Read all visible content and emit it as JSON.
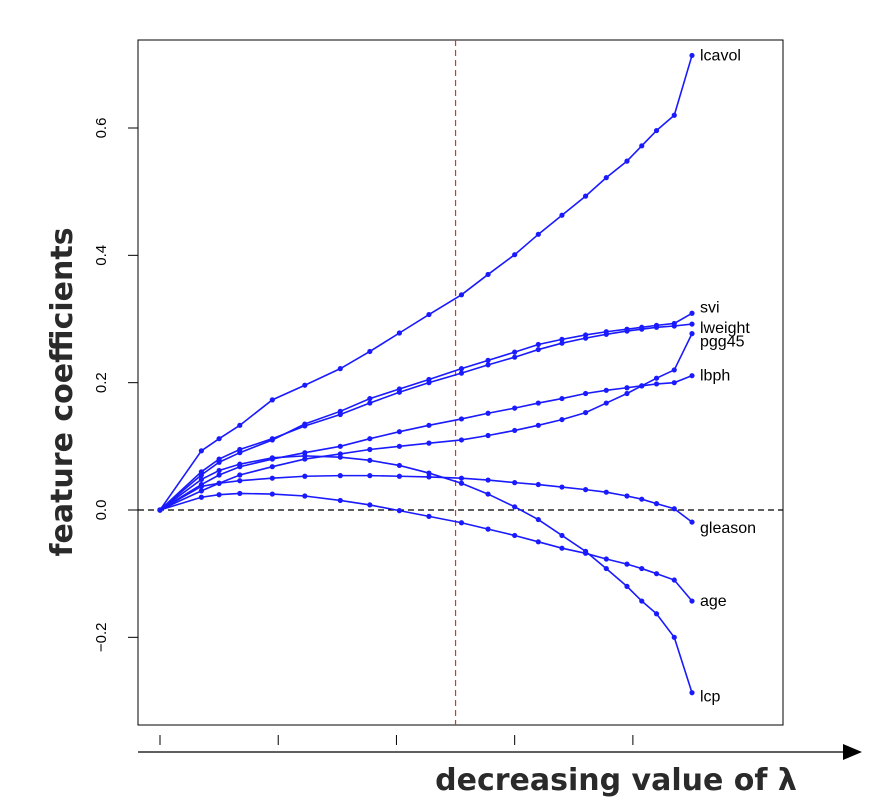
{
  "chart_data": {
    "type": "line",
    "title": "",
    "xlabel": "decreasing value of λ",
    "ylabel": "feature coefficients",
    "x_tick_labels": [
      "",
      "",
      "",
      "",
      ""
    ],
    "y_ticks": [
      -0.2,
      0.0,
      0.2,
      0.4,
      0.6
    ],
    "y_tick_labels": [
      "−0.2",
      "0.0",
      "0.2",
      "0.4",
      "0.6"
    ],
    "x": [
      0,
      0.7,
      1.0,
      1.35,
      1.9,
      2.45,
      3.05,
      3.55,
      4.05,
      4.55,
      5.1,
      5.55,
      6.0,
      6.4,
      6.8,
      7.2,
      7.55,
      7.9,
      8.15,
      8.4,
      8.7,
      9.0
    ],
    "xlim": [
      -0.15,
      10.0
    ],
    "ylim": [
      -0.34,
      0.78
    ],
    "x_axis_ticks": [
      0,
      2,
      4,
      6,
      8
    ],
    "reference_lines": {
      "vertical_x": 5.0,
      "vertical_color": "#e03030",
      "horizontal_y": 0.0,
      "horizontal_color": "#000000"
    },
    "series": [
      {
        "name": "lcavol",
        "values": [
          0,
          0.093,
          0.112,
          0.133,
          0.173,
          0.196,
          0.222,
          0.249,
          0.278,
          0.307,
          0.338,
          0.37,
          0.401,
          0.433,
          0.463,
          0.493,
          0.522,
          0.548,
          0.572,
          0.596,
          0.62,
          0.714
        ]
      },
      {
        "name": "svi",
        "values": [
          0,
          0.055,
          0.075,
          0.09,
          0.11,
          0.135,
          0.155,
          0.175,
          0.19,
          0.205,
          0.222,
          0.235,
          0.248,
          0.26,
          0.268,
          0.275,
          0.28,
          0.284,
          0.287,
          0.29,
          0.293,
          0.309
        ]
      },
      {
        "name": "lweight",
        "values": [
          0,
          0.06,
          0.08,
          0.095,
          0.112,
          0.132,
          0.15,
          0.168,
          0.185,
          0.2,
          0.215,
          0.228,
          0.24,
          0.252,
          0.262,
          0.27,
          0.276,
          0.281,
          0.284,
          0.287,
          0.289,
          0.292
        ]
      },
      {
        "name": "pgg45",
        "values": [
          0,
          0.03,
          0.042,
          0.055,
          0.068,
          0.08,
          0.088,
          0.095,
          0.1,
          0.105,
          0.11,
          0.117,
          0.125,
          0.133,
          0.142,
          0.153,
          0.168,
          0.183,
          0.195,
          0.207,
          0.22,
          0.277
        ]
      },
      {
        "name": "lbph",
        "values": [
          0,
          0.04,
          0.055,
          0.068,
          0.08,
          0.09,
          0.1,
          0.112,
          0.123,
          0.133,
          0.143,
          0.152,
          0.16,
          0.168,
          0.175,
          0.183,
          0.188,
          0.192,
          0.195,
          0.198,
          0.2,
          0.211
        ]
      },
      {
        "name": "gleason",
        "values": [
          0,
          0.037,
          0.042,
          0.046,
          0.05,
          0.053,
          0.054,
          0.054,
          0.053,
          0.052,
          0.05,
          0.047,
          0.043,
          0.04,
          0.036,
          0.032,
          0.028,
          0.022,
          0.017,
          0.01,
          0.002,
          -0.019
        ]
      },
      {
        "name": "age",
        "values": [
          0,
          0.02,
          0.024,
          0.026,
          0.025,
          0.022,
          0.015,
          0.008,
          -0.001,
          -0.01,
          -0.02,
          -0.03,
          -0.04,
          -0.05,
          -0.06,
          -0.068,
          -0.077,
          -0.085,
          -0.092,
          -0.1,
          -0.11,
          -0.143
        ]
      },
      {
        "name": "lcp",
        "values": [
          0,
          0.048,
          0.062,
          0.072,
          0.082,
          0.085,
          0.083,
          0.078,
          0.07,
          0.058,
          0.042,
          0.025,
          0.005,
          -0.015,
          -0.04,
          -0.065,
          -0.092,
          -0.12,
          -0.143,
          -0.163,
          -0.2,
          -0.287
        ]
      }
    ],
    "line_color": "#1a1aff",
    "grid": false,
    "legend": "labels at line ends (right)"
  }
}
